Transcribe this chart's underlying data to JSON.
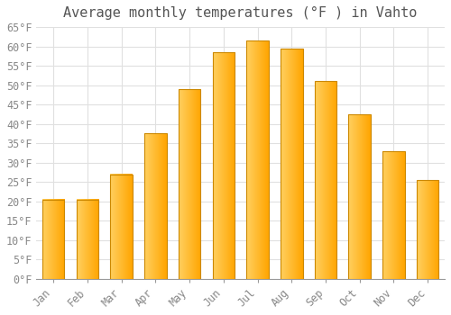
{
  "title": "Average monthly temperatures (°F ) in Vahto",
  "months": [
    "Jan",
    "Feb",
    "Mar",
    "Apr",
    "May",
    "Jun",
    "Jul",
    "Aug",
    "Sep",
    "Oct",
    "Nov",
    "Dec"
  ],
  "values": [
    20.5,
    20.5,
    27.0,
    37.5,
    49.0,
    58.5,
    61.5,
    59.5,
    51.0,
    42.5,
    33.0,
    25.5
  ],
  "bar_color_light": "#FFD060",
  "bar_color_dark": "#FFA500",
  "bar_edge_color": "#CC8800",
  "ylim": [
    0,
    65
  ],
  "yticks": [
    0,
    5,
    10,
    15,
    20,
    25,
    30,
    35,
    40,
    45,
    50,
    55,
    60,
    65
  ],
  "ytick_labels": [
    "0°F",
    "5°F",
    "10°F",
    "15°F",
    "20°F",
    "25°F",
    "30°F",
    "35°F",
    "40°F",
    "45°F",
    "50°F",
    "55°F",
    "60°F",
    "65°F"
  ],
  "background_color": "#ffffff",
  "grid_color": "#e0e0e0",
  "title_fontsize": 11,
  "tick_fontsize": 8.5,
  "bar_width": 0.65
}
